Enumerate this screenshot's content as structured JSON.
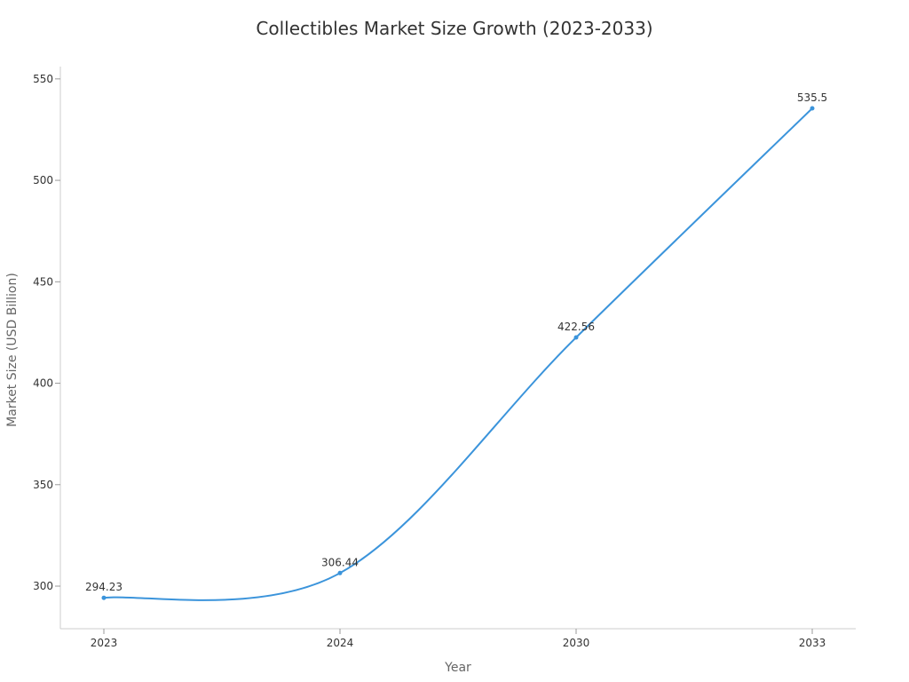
{
  "chart_data": {
    "type": "line",
    "title": "Collectibles Market Size Growth (2023-2033)",
    "xlabel": "Year",
    "ylabel": "Market Size (USD Billion)",
    "categories": [
      "2023",
      "2024",
      "2030",
      "2033"
    ],
    "series": [
      {
        "values": [
          294.23,
          306.44,
          422.56,
          535.5
        ],
        "color": "#3b94db"
      }
    ],
    "data_labels": [
      "294.23",
      "306.44",
      "422.56",
      "535.5"
    ],
    "y_ticks": [
      300,
      350,
      400,
      450,
      500,
      550
    ],
    "ylim": [
      279,
      560
    ],
    "grid": false,
    "axis_color": "#cccccc"
  }
}
